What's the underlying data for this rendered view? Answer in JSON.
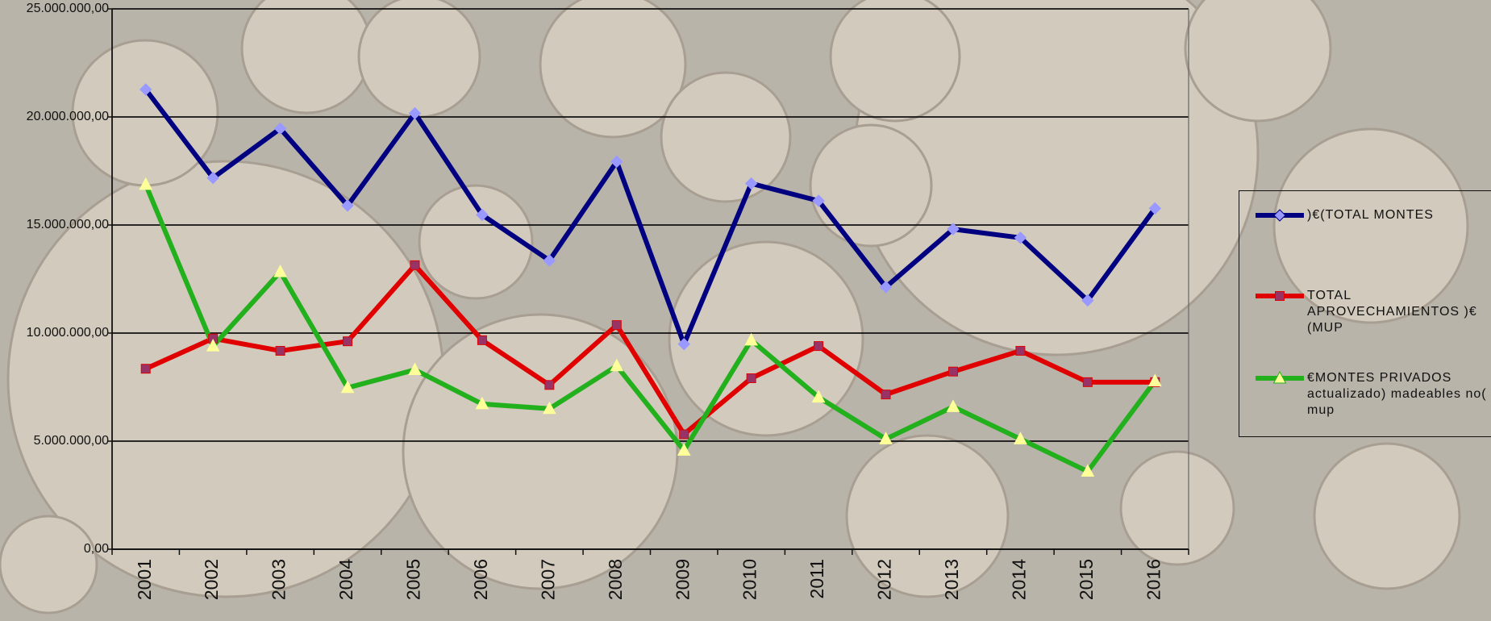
{
  "chart_data": {
    "type": "line",
    "categories": [
      "2001",
      "2002",
      "2003",
      "2004",
      "2005",
      "2006",
      "2007",
      "2008",
      "2009",
      "2010",
      "2011",
      "2012",
      "2013",
      "2014",
      "2015",
      "2016"
    ],
    "series": [
      {
        "name": ")€(TOTAL MONTES",
        "color": "#000080",
        "marker": "diamond",
        "marker_color": "#9999ff",
        "values": [
          21270000,
          17180000,
          19460000,
          15900000,
          20170000,
          15470000,
          13360000,
          17930000,
          9490000,
          16920000,
          16120000,
          12130000,
          14810000,
          14410000,
          11510000,
          15770000
        ]
      },
      {
        "name": "TOTAL APROVECHAMIENTOS )€(MUP",
        "color": "#e00000",
        "marker": "square",
        "marker_color": "#993366",
        "values": [
          8350000,
          9750000,
          9180000,
          9620000,
          13140000,
          9670000,
          7600000,
          10370000,
          5320000,
          7910000,
          9400000,
          7160000,
          8220000,
          9180000,
          7730000,
          7730000
        ]
      },
      {
        "name": "€MONTES PRIVADOS actualizado) madeables no( mup",
        "color": "#22b01c",
        "marker": "triangle",
        "marker_color": "#ffff99",
        "values": [
          16870000,
          9400000,
          12830000,
          7470000,
          8300000,
          6720000,
          6500000,
          8480000,
          4570000,
          9670000,
          7030000,
          5100000,
          6590000,
          5100000,
          3600000,
          7780000
        ]
      }
    ],
    "ylim": [
      0,
      25000000
    ],
    "yticks": [
      {
        "value": 0,
        "label": "0,00"
      },
      {
        "value": 5000000,
        "label": "5.000.000,00"
      },
      {
        "value": 10000000,
        "label": "10.000.000,00"
      },
      {
        "value": 15000000,
        "label": "15.000.000,00"
      },
      {
        "value": 20000000,
        "label": "20.000.000,00"
      },
      {
        "value": 25000000,
        "label": "25.000.000,00"
      }
    ],
    "grid": true
  }
}
